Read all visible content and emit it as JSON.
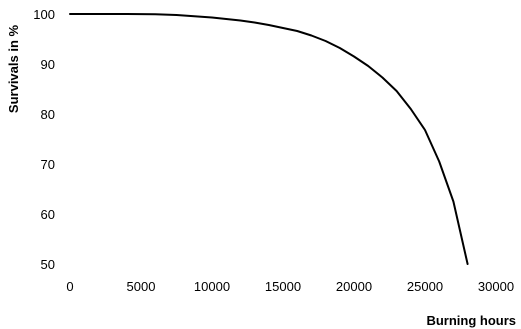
{
  "chart_data": {
    "type": "line",
    "xlabel": "Burning hours",
    "ylabel": "Survivals in %",
    "xlim": [
      0,
      30000
    ],
    "ylim": [
      50,
      100
    ],
    "x_ticks": [
      0,
      5000,
      10000,
      15000,
      20000,
      25000,
      30000
    ],
    "x_tick_labels": [
      "0",
      "5000",
      "10000",
      "15000",
      "20000",
      "25000",
      "30000"
    ],
    "y_ticks": [
      50,
      60,
      70,
      80,
      90,
      100
    ],
    "y_tick_labels": [
      "50",
      "60",
      "70",
      "80",
      "90",
      "100"
    ],
    "grid": false,
    "legend": "none",
    "line_color": "#000000",
    "series": [
      {
        "x": [
          0,
          2000,
          4000,
          6000,
          7500,
          9000,
          10000,
          11000,
          12000,
          13000,
          14000,
          15000,
          16000,
          17000,
          18000,
          19000,
          20000,
          21000,
          22000,
          23000,
          24000,
          25000,
          26000,
          27000,
          28000
        ],
        "values": [
          100,
          100,
          100,
          99.95,
          99.8,
          99.5,
          99.3,
          99.0,
          98.7,
          98.3,
          97.8,
          97.2,
          96.6,
          95.7,
          94.6,
          93.2,
          91.5,
          89.6,
          87.3,
          84.6,
          81.0,
          76.8,
          70.5,
          62.5,
          50
        ]
      }
    ]
  }
}
